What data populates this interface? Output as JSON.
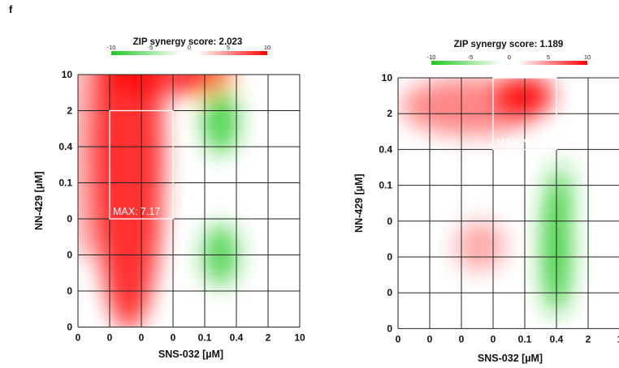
{
  "panel_label": "f",
  "chart_data": [
    {
      "type": "heatmap",
      "title": "ZIP synergy score: 2.023",
      "xlabel": "SNS-032 [µM]",
      "ylabel": "NN-429 [µM]",
      "x_ticks": [
        "0",
        "0",
        "0",
        "0",
        "0.1",
        "0.4",
        "2",
        "10"
      ],
      "y_ticks": [
        "10",
        "2",
        "0.4",
        "0.1",
        "0",
        "0",
        "0",
        "0"
      ],
      "colorbar": {
        "ticks": [
          "-10",
          "-5",
          "0",
          "5",
          "10"
        ],
        "range": [
          -10,
          10
        ],
        "low_color": "#1ec81e",
        "high_color": "#ff0000"
      },
      "max_label": "MAX: 7.17",
      "max_region": {
        "x_range": [
          1,
          3
        ],
        "y_range": [
          1,
          4
        ]
      },
      "synergy_regions": [
        {
          "x": 1.6,
          "y": 2.3,
          "sx": 1.1,
          "sy": 4.8,
          "value": 8.5
        },
        {
          "x": 2.8,
          "y": 0.0,
          "sx": 2.2,
          "sy": 0.55,
          "value": 7.5
        },
        {
          "x": 0.2,
          "y": 2.0,
          "sx": 0.7,
          "sy": 3.2,
          "value": 3.0
        },
        {
          "x": 4.5,
          "y": 1.3,
          "sx": 0.55,
          "sy": 0.9,
          "value": -8.5
        },
        {
          "x": 4.5,
          "y": 5.0,
          "sx": 0.55,
          "sy": 0.85,
          "value": -8.0
        },
        {
          "x": 3.7,
          "y": 0.1,
          "sx": 0.7,
          "sy": 0.5,
          "value": 4.0
        }
      ]
    },
    {
      "type": "heatmap",
      "title": "ZIP synergy score: 1.189",
      "xlabel": "SNS-032 [µM]",
      "ylabel": "NN-429 [µM]",
      "x_ticks": [
        "0",
        "0",
        "0",
        "0",
        "0.1",
        "0.4",
        "2",
        "1"
      ],
      "y_ticks": [
        "10",
        "2",
        "0.4",
        "0.1",
        "0",
        "0",
        "0",
        "0"
      ],
      "colorbar": {
        "ticks": [
          "-10",
          "-5",
          "0",
          "5",
          "10"
        ],
        "range": [
          -10,
          10
        ],
        "low_color": "#1ec81e",
        "high_color": "#ff0000"
      },
      "max_label": "MAX: 9.83",
      "max_region": {
        "x_range": [
          3,
          5
        ],
        "y_range": [
          0,
          2
        ]
      },
      "synergy_regions": [
        {
          "x": 4.0,
          "y": 0.5,
          "sx": 0.9,
          "sy": 0.55,
          "value": 9.5
        },
        {
          "x": 2.3,
          "y": 0.8,
          "sx": 2.2,
          "sy": 0.8,
          "value": 5.0
        },
        {
          "x": 2.6,
          "y": 4.7,
          "sx": 0.8,
          "sy": 0.7,
          "value": 3.5
        },
        {
          "x": 5.0,
          "y": 4.8,
          "sx": 0.45,
          "sy": 1.8,
          "value": -9.0
        },
        {
          "x": 5.1,
          "y": 3.2,
          "sx": 0.4,
          "sy": 0.8,
          "value": -6.0
        }
      ]
    }
  ]
}
